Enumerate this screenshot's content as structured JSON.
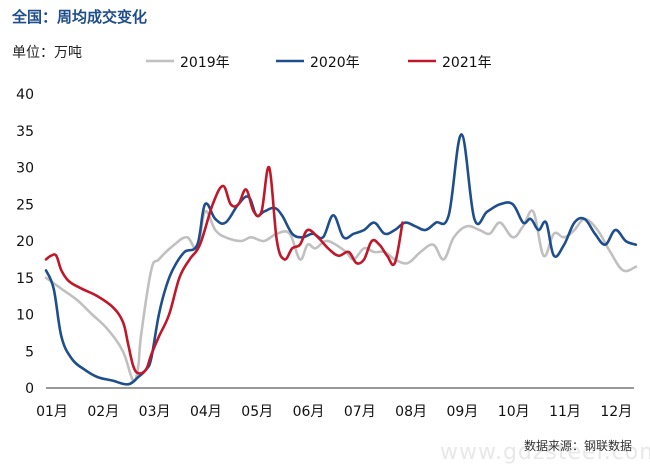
{
  "page": {
    "title": "全国：周均成交变化",
    "unit_label": "单位：万吨",
    "source": "数据来源：钢联数据",
    "watermark": "www.gdzsteel.com"
  },
  "chart_data": {
    "type": "line",
    "title": "全国：周均成交变化",
    "ylabel": "万吨",
    "ylim": [
      0,
      40
    ],
    "yticks": [
      0,
      5,
      10,
      15,
      20,
      25,
      30,
      35,
      40
    ],
    "xlim": [
      0,
      11.6
    ],
    "xticks": [
      "01月",
      "02月",
      "03月",
      "04月",
      "05月",
      "06月",
      "07月",
      "08月",
      "09月",
      "10月",
      "11月",
      "12月"
    ],
    "grid": false,
    "legend_position": "top",
    "series": [
      {
        "name": "2019年",
        "color": "#c0c0c0",
        "x": [
          0.0,
          0.3,
          0.6,
          0.9,
          1.2,
          1.5,
          1.7,
          1.8,
          1.85,
          2.05,
          2.2,
          2.5,
          2.75,
          2.95,
          3.1,
          3.3,
          3.5,
          3.8,
          4.0,
          4.25,
          4.5,
          4.75,
          4.95,
          5.1,
          5.25,
          5.45,
          5.65,
          5.85,
          6.0,
          6.2,
          6.4,
          6.6,
          6.8,
          7.05,
          7.3,
          7.55,
          7.75,
          7.95,
          8.2,
          8.45,
          8.65,
          8.85,
          9.1,
          9.3,
          9.5,
          9.7,
          9.9,
          10.1,
          10.3,
          10.5,
          10.75,
          11.0,
          11.25,
          11.5
        ],
        "values": [
          15.0,
          13.5,
          12.0,
          10.0,
          8.0,
          5.0,
          1.0,
          3.0,
          7.0,
          16.0,
          17.5,
          19.5,
          20.5,
          19.0,
          24.0,
          21.5,
          20.5,
          20.0,
          20.5,
          20.0,
          21.0,
          21.0,
          17.5,
          19.5,
          19.0,
          20.0,
          19.5,
          18.5,
          17.5,
          19.0,
          18.5,
          18.5,
          17.5,
          17.0,
          18.5,
          19.5,
          17.5,
          20.5,
          22.0,
          21.5,
          21.0,
          22.5,
          20.5,
          22.0,
          24.0,
          18.0,
          21.0,
          20.5,
          21.5,
          23.0,
          21.5,
          18.5,
          16.0,
          16.5
        ]
      },
      {
        "name": "2020年",
        "color": "#1f4e8c",
        "x": [
          0.0,
          0.15,
          0.3,
          0.5,
          0.75,
          1.0,
          1.3,
          1.6,
          1.8,
          1.95,
          2.05,
          2.2,
          2.35,
          2.5,
          2.7,
          2.95,
          3.1,
          3.3,
          3.5,
          3.75,
          3.95,
          4.1,
          4.25,
          4.45,
          4.6,
          4.8,
          5.0,
          5.2,
          5.4,
          5.6,
          5.8,
          6.0,
          6.2,
          6.4,
          6.6,
          6.8,
          7.0,
          7.2,
          7.4,
          7.6,
          7.85,
          8.1,
          8.35,
          8.6,
          8.85,
          9.1,
          9.3,
          9.45,
          9.6,
          9.75,
          9.9,
          10.1,
          10.3,
          10.5,
          10.7,
          10.9,
          11.1,
          11.3,
          11.5
        ],
        "values": [
          16.0,
          13.5,
          7.0,
          4.0,
          2.5,
          1.5,
          1.0,
          0.5,
          1.5,
          2.5,
          4.0,
          10.0,
          14.0,
          16.5,
          18.5,
          19.5,
          25.0,
          23.0,
          22.5,
          25.0,
          26.0,
          23.5,
          24.0,
          24.5,
          23.5,
          21.0,
          20.5,
          21.0,
          20.5,
          23.5,
          20.5,
          21.0,
          21.5,
          22.5,
          21.0,
          21.5,
          22.5,
          22.0,
          21.5,
          22.5,
          23.5,
          34.5,
          23.0,
          24.0,
          25.0,
          25.0,
          22.5,
          23.0,
          21.5,
          22.5,
          18.0,
          19.5,
          22.5,
          23.0,
          21.0,
          19.5,
          21.5,
          20.0,
          19.5
        ]
      },
      {
        "name": "2021年",
        "color": "#c0182b",
        "x": [
          0.0,
          0.1,
          0.2,
          0.3,
          0.45,
          0.7,
          1.0,
          1.3,
          1.5,
          1.6,
          1.7,
          1.8,
          1.95,
          2.05,
          2.2,
          2.4,
          2.6,
          2.8,
          3.0,
          3.25,
          3.45,
          3.6,
          3.75,
          3.9,
          4.05,
          4.2,
          4.35,
          4.5,
          4.65,
          4.8,
          4.95,
          5.1,
          5.3,
          5.5,
          5.7,
          5.9,
          6.05,
          6.2,
          6.35,
          6.5,
          6.65,
          6.8,
          6.95
        ],
        "values": [
          17.5,
          18.0,
          18.0,
          16.0,
          14.5,
          13.5,
          12.5,
          11.0,
          9.0,
          6.0,
          3.0,
          2.0,
          2.5,
          4.5,
          7.0,
          10.0,
          15.0,
          17.5,
          19.5,
          25.0,
          27.5,
          25.0,
          25.0,
          27.0,
          24.0,
          24.0,
          30.0,
          20.0,
          17.5,
          19.0,
          19.5,
          21.5,
          20.5,
          19.0,
          18.0,
          18.5,
          17.0,
          17.5,
          20.0,
          19.5,
          18.0,
          17.0,
          22.5
        ]
      }
    ]
  }
}
